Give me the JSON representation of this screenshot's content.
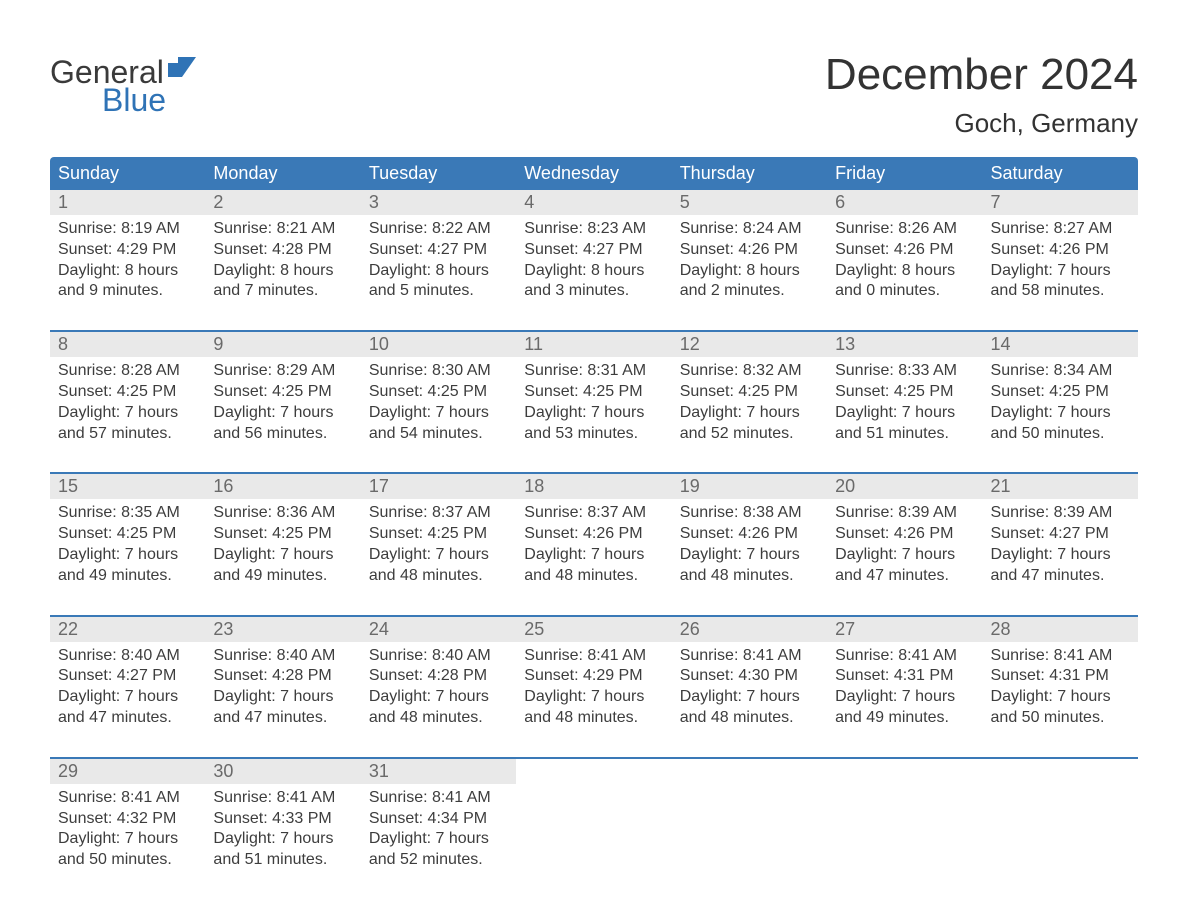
{
  "logo": {
    "word1": "General",
    "word2": "Blue",
    "flag_color": "#2f73b6",
    "text_top_color": "#3a3a3a"
  },
  "title": "December 2024",
  "location": "Goch, Germany",
  "colors": {
    "header_bg": "#3a79b7",
    "header_text": "#ffffff",
    "daynum_bg": "#e9e9e9",
    "daynum_text": "#6a6a6a",
    "body_text": "#3d3d3d",
    "page_bg": "#ffffff",
    "rule": "#3a79b7"
  },
  "typography": {
    "title_fontsize": 44,
    "location_fontsize": 26,
    "header_fontsize": 18,
    "daynum_fontsize": 18,
    "cell_fontsize": 16,
    "font_family": "Arial"
  },
  "weekday_labels": [
    "Sunday",
    "Monday",
    "Tuesday",
    "Wednesday",
    "Thursday",
    "Friday",
    "Saturday"
  ],
  "weeks": [
    [
      {
        "num": "1",
        "l1": "Sunrise: 8:19 AM",
        "l2": "Sunset: 4:29 PM",
        "l3": "Daylight: 8 hours",
        "l4": "and 9 minutes."
      },
      {
        "num": "2",
        "l1": "Sunrise: 8:21 AM",
        "l2": "Sunset: 4:28 PM",
        "l3": "Daylight: 8 hours",
        "l4": "and 7 minutes."
      },
      {
        "num": "3",
        "l1": "Sunrise: 8:22 AM",
        "l2": "Sunset: 4:27 PM",
        "l3": "Daylight: 8 hours",
        "l4": "and 5 minutes."
      },
      {
        "num": "4",
        "l1": "Sunrise: 8:23 AM",
        "l2": "Sunset: 4:27 PM",
        "l3": "Daylight: 8 hours",
        "l4": "and 3 minutes."
      },
      {
        "num": "5",
        "l1": "Sunrise: 8:24 AM",
        "l2": "Sunset: 4:26 PM",
        "l3": "Daylight: 8 hours",
        "l4": "and 2 minutes."
      },
      {
        "num": "6",
        "l1": "Sunrise: 8:26 AM",
        "l2": "Sunset: 4:26 PM",
        "l3": "Daylight: 8 hours",
        "l4": "and 0 minutes."
      },
      {
        "num": "7",
        "l1": "Sunrise: 8:27 AM",
        "l2": "Sunset: 4:26 PM",
        "l3": "Daylight: 7 hours",
        "l4": "and 58 minutes."
      }
    ],
    [
      {
        "num": "8",
        "l1": "Sunrise: 8:28 AM",
        "l2": "Sunset: 4:25 PM",
        "l3": "Daylight: 7 hours",
        "l4": "and 57 minutes."
      },
      {
        "num": "9",
        "l1": "Sunrise: 8:29 AM",
        "l2": "Sunset: 4:25 PM",
        "l3": "Daylight: 7 hours",
        "l4": "and 56 minutes."
      },
      {
        "num": "10",
        "l1": "Sunrise: 8:30 AM",
        "l2": "Sunset: 4:25 PM",
        "l3": "Daylight: 7 hours",
        "l4": "and 54 minutes."
      },
      {
        "num": "11",
        "l1": "Sunrise: 8:31 AM",
        "l2": "Sunset: 4:25 PM",
        "l3": "Daylight: 7 hours",
        "l4": "and 53 minutes."
      },
      {
        "num": "12",
        "l1": "Sunrise: 8:32 AM",
        "l2": "Sunset: 4:25 PM",
        "l3": "Daylight: 7 hours",
        "l4": "and 52 minutes."
      },
      {
        "num": "13",
        "l1": "Sunrise: 8:33 AM",
        "l2": "Sunset: 4:25 PM",
        "l3": "Daylight: 7 hours",
        "l4": "and 51 minutes."
      },
      {
        "num": "14",
        "l1": "Sunrise: 8:34 AM",
        "l2": "Sunset: 4:25 PM",
        "l3": "Daylight: 7 hours",
        "l4": "and 50 minutes."
      }
    ],
    [
      {
        "num": "15",
        "l1": "Sunrise: 8:35 AM",
        "l2": "Sunset: 4:25 PM",
        "l3": "Daylight: 7 hours",
        "l4": "and 49 minutes."
      },
      {
        "num": "16",
        "l1": "Sunrise: 8:36 AM",
        "l2": "Sunset: 4:25 PM",
        "l3": "Daylight: 7 hours",
        "l4": "and 49 minutes."
      },
      {
        "num": "17",
        "l1": "Sunrise: 8:37 AM",
        "l2": "Sunset: 4:25 PM",
        "l3": "Daylight: 7 hours",
        "l4": "and 48 minutes."
      },
      {
        "num": "18",
        "l1": "Sunrise: 8:37 AM",
        "l2": "Sunset: 4:26 PM",
        "l3": "Daylight: 7 hours",
        "l4": "and 48 minutes."
      },
      {
        "num": "19",
        "l1": "Sunrise: 8:38 AM",
        "l2": "Sunset: 4:26 PM",
        "l3": "Daylight: 7 hours",
        "l4": "and 48 minutes."
      },
      {
        "num": "20",
        "l1": "Sunrise: 8:39 AM",
        "l2": "Sunset: 4:26 PM",
        "l3": "Daylight: 7 hours",
        "l4": "and 47 minutes."
      },
      {
        "num": "21",
        "l1": "Sunrise: 8:39 AM",
        "l2": "Sunset: 4:27 PM",
        "l3": "Daylight: 7 hours",
        "l4": "and 47 minutes."
      }
    ],
    [
      {
        "num": "22",
        "l1": "Sunrise: 8:40 AM",
        "l2": "Sunset: 4:27 PM",
        "l3": "Daylight: 7 hours",
        "l4": "and 47 minutes."
      },
      {
        "num": "23",
        "l1": "Sunrise: 8:40 AM",
        "l2": "Sunset: 4:28 PM",
        "l3": "Daylight: 7 hours",
        "l4": "and 47 minutes."
      },
      {
        "num": "24",
        "l1": "Sunrise: 8:40 AM",
        "l2": "Sunset: 4:28 PM",
        "l3": "Daylight: 7 hours",
        "l4": "and 48 minutes."
      },
      {
        "num": "25",
        "l1": "Sunrise: 8:41 AM",
        "l2": "Sunset: 4:29 PM",
        "l3": "Daylight: 7 hours",
        "l4": "and 48 minutes."
      },
      {
        "num": "26",
        "l1": "Sunrise: 8:41 AM",
        "l2": "Sunset: 4:30 PM",
        "l3": "Daylight: 7 hours",
        "l4": "and 48 minutes."
      },
      {
        "num": "27",
        "l1": "Sunrise: 8:41 AM",
        "l2": "Sunset: 4:31 PM",
        "l3": "Daylight: 7 hours",
        "l4": "and 49 minutes."
      },
      {
        "num": "28",
        "l1": "Sunrise: 8:41 AM",
        "l2": "Sunset: 4:31 PM",
        "l3": "Daylight: 7 hours",
        "l4": "and 50 minutes."
      }
    ],
    [
      {
        "num": "29",
        "l1": "Sunrise: 8:41 AM",
        "l2": "Sunset: 4:32 PM",
        "l3": "Daylight: 7 hours",
        "l4": "and 50 minutes."
      },
      {
        "num": "30",
        "l1": "Sunrise: 8:41 AM",
        "l2": "Sunset: 4:33 PM",
        "l3": "Daylight: 7 hours",
        "l4": "and 51 minutes."
      },
      {
        "num": "31",
        "l1": "Sunrise: 8:41 AM",
        "l2": "Sunset: 4:34 PM",
        "l3": "Daylight: 7 hours",
        "l4": "and 52 minutes."
      },
      null,
      null,
      null,
      null
    ]
  ]
}
